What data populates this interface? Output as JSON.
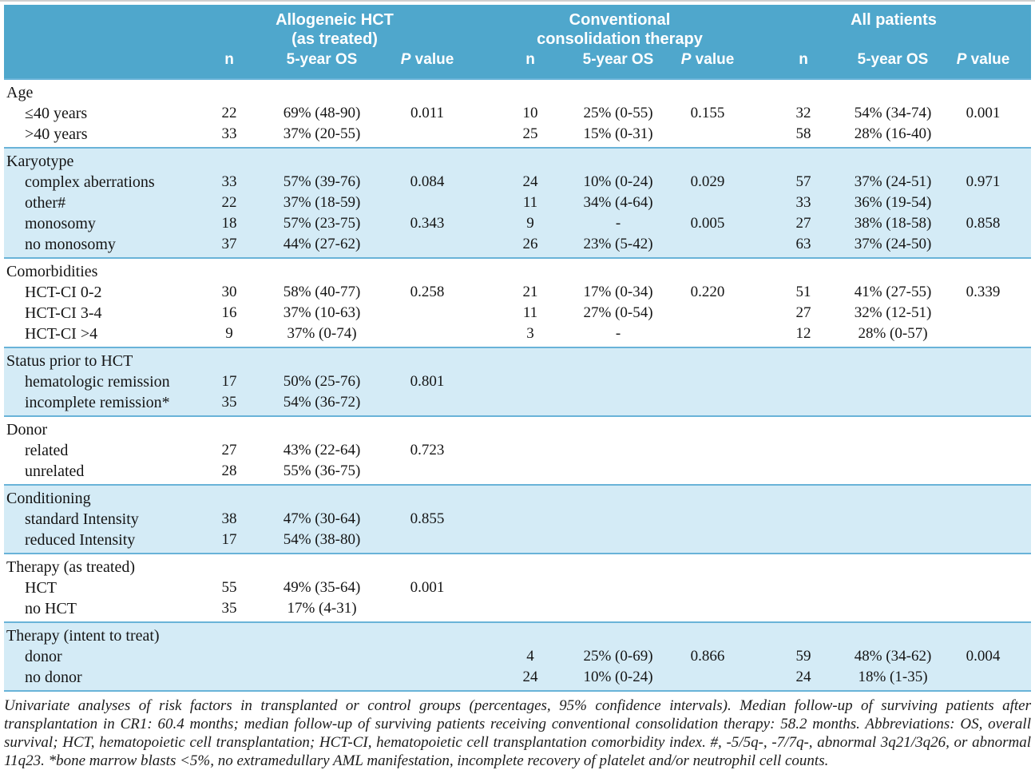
{
  "table": {
    "groups": [
      {
        "line1": "Allogeneic HCT",
        "line2": "(as treated)"
      },
      {
        "line1": "Conventional",
        "line2": "consolidation therapy"
      },
      {
        "line1": "All patients",
        "line2": ""
      }
    ],
    "col_n": "n",
    "col_os": "5-year OS",
    "col_p_symbol": "P",
    "col_p_text": " value",
    "sections": [
      {
        "label": "Age",
        "shaded": false,
        "rows": [
          {
            "label": "≤40 years",
            "cells": [
              "22",
              "69% (48-90)",
              "0.011",
              "10",
              "25% (0-55)",
              "0.155",
              "32",
              "54% (34-74)",
              "0.001"
            ]
          },
          {
            "label": ">40 years",
            "cells": [
              "33",
              "37% (20-55)",
              "",
              "25",
              "15% (0-31)",
              "",
              "58",
              "28% (16-40)",
              ""
            ]
          }
        ]
      },
      {
        "label": "Karyotype",
        "shaded": true,
        "rows": [
          {
            "label": "complex aberrations",
            "cells": [
              "33",
              "57% (39-76)",
              "0.084",
              "24",
              "10% (0-24)",
              "0.029",
              "57",
              "37% (24-51)",
              "0.971"
            ]
          },
          {
            "label": "other#",
            "cells": [
              "22",
              "37% (18-59)",
              "",
              "11",
              "34% (4-64)",
              "",
              "33",
              "36% (19-54)",
              ""
            ]
          },
          {
            "label": "monosomy",
            "cells": [
              "18",
              "57% (23-75)",
              "0.343",
              "9",
              "-",
              "0.005",
              "27",
              "38% (18-58)",
              "0.858"
            ]
          },
          {
            "label": "no monosomy",
            "cells": [
              "37",
              "44% (27-62)",
              "",
              "26",
              "23% (5-42)",
              "",
              "63",
              "37% (24-50)",
              ""
            ]
          }
        ]
      },
      {
        "label": "Comorbidities",
        "shaded": false,
        "rows": [
          {
            "label": "HCT-CI 0-2",
            "cells": [
              "30",
              "58% (40-77)",
              "0.258",
              "21",
              "17% (0-34)",
              "0.220",
              "51",
              "41% (27-55)",
              "0.339"
            ]
          },
          {
            "label": "HCT-CI 3-4",
            "cells": [
              "16",
              "37% (10-63)",
              "",
              "11",
              "27% (0-54)",
              "",
              "27",
              "32% (12-51)",
              ""
            ]
          },
          {
            "label": "HCT-CI >4",
            "cells": [
              "9",
              "37% (0-74)",
              "",
              "3",
              "-",
              "",
              "12",
              "28% (0-57)",
              ""
            ]
          }
        ]
      },
      {
        "label": "Status prior to HCT",
        "shaded": true,
        "rows": [
          {
            "label": "hematologic remission",
            "cells": [
              "17",
              "50% (25-76)",
              "0.801",
              "",
              "",
              "",
              "",
              "",
              ""
            ]
          },
          {
            "label": "incomplete remission*",
            "cells": [
              "35",
              "54% (36-72)",
              "",
              "",
              "",
              "",
              "",
              "",
              ""
            ]
          }
        ]
      },
      {
        "label": "Donor",
        "shaded": false,
        "rows": [
          {
            "label": "related",
            "cells": [
              "27",
              "43% (22-64)",
              "0.723",
              "",
              "",
              "",
              "",
              "",
              ""
            ]
          },
          {
            "label": "unrelated",
            "cells": [
              "28",
              "55% (36-75)",
              "",
              "",
              "",
              "",
              "",
              "",
              ""
            ]
          }
        ]
      },
      {
        "label": "Conditioning",
        "shaded": true,
        "rows": [
          {
            "label": "standard Intensity",
            "cells": [
              "38",
              "47% (30-64)",
              "0.855",
              "",
              "",
              "",
              "",
              "",
              ""
            ]
          },
          {
            "label": "reduced Intensity",
            "cells": [
              "17",
              "54% (38-80)",
              "",
              "",
              "",
              "",
              "",
              "",
              ""
            ]
          }
        ]
      },
      {
        "label": "Therapy (as treated)",
        "shaded": false,
        "rows": [
          {
            "label": "HCT",
            "cells": [
              "55",
              "49% (35-64)",
              "0.001",
              "",
              "",
              "",
              "",
              "",
              ""
            ]
          },
          {
            "label": "no HCT",
            "cells": [
              "35",
              "17% (4-31)",
              "",
              "",
              "",
              "",
              "",
              "",
              ""
            ]
          }
        ]
      },
      {
        "label": "Therapy (intent to treat)",
        "shaded": true,
        "rows": [
          {
            "label": "donor",
            "cells": [
              "",
              "",
              "",
              "4",
              "25% (0-69)",
              "0.866",
              "59",
              "48% (34-62)",
              "0.004"
            ]
          },
          {
            "label": "no donor",
            "cells": [
              "",
              "",
              "",
              "24",
              "10% (0-24)",
              "",
              "24",
              "18% (1-35)",
              ""
            ]
          }
        ]
      }
    ]
  },
  "caption": "Univariate analyses of risk factors in transplanted or control groups (percentages, 95% confidence intervals). Median follow-up of surviving patients after transplantation in CR1: 60.4 months; median follow-up of surviving patients receiving conventional consolidation therapy: 58.2 months. Abbreviations: OS, overall survival; HCT, hematopoietic cell transplantation; HCT-CI, hematopoietic cell transplantation comorbidity index. #, -5/5q-, -7/7q-, abnormal 3q21/3q26, or abnormal 11q23. *bone marrow blasts <5%, no extramedullary AML manifestation, incomplete recovery of platelet and/or neutrophil cell counts."
}
